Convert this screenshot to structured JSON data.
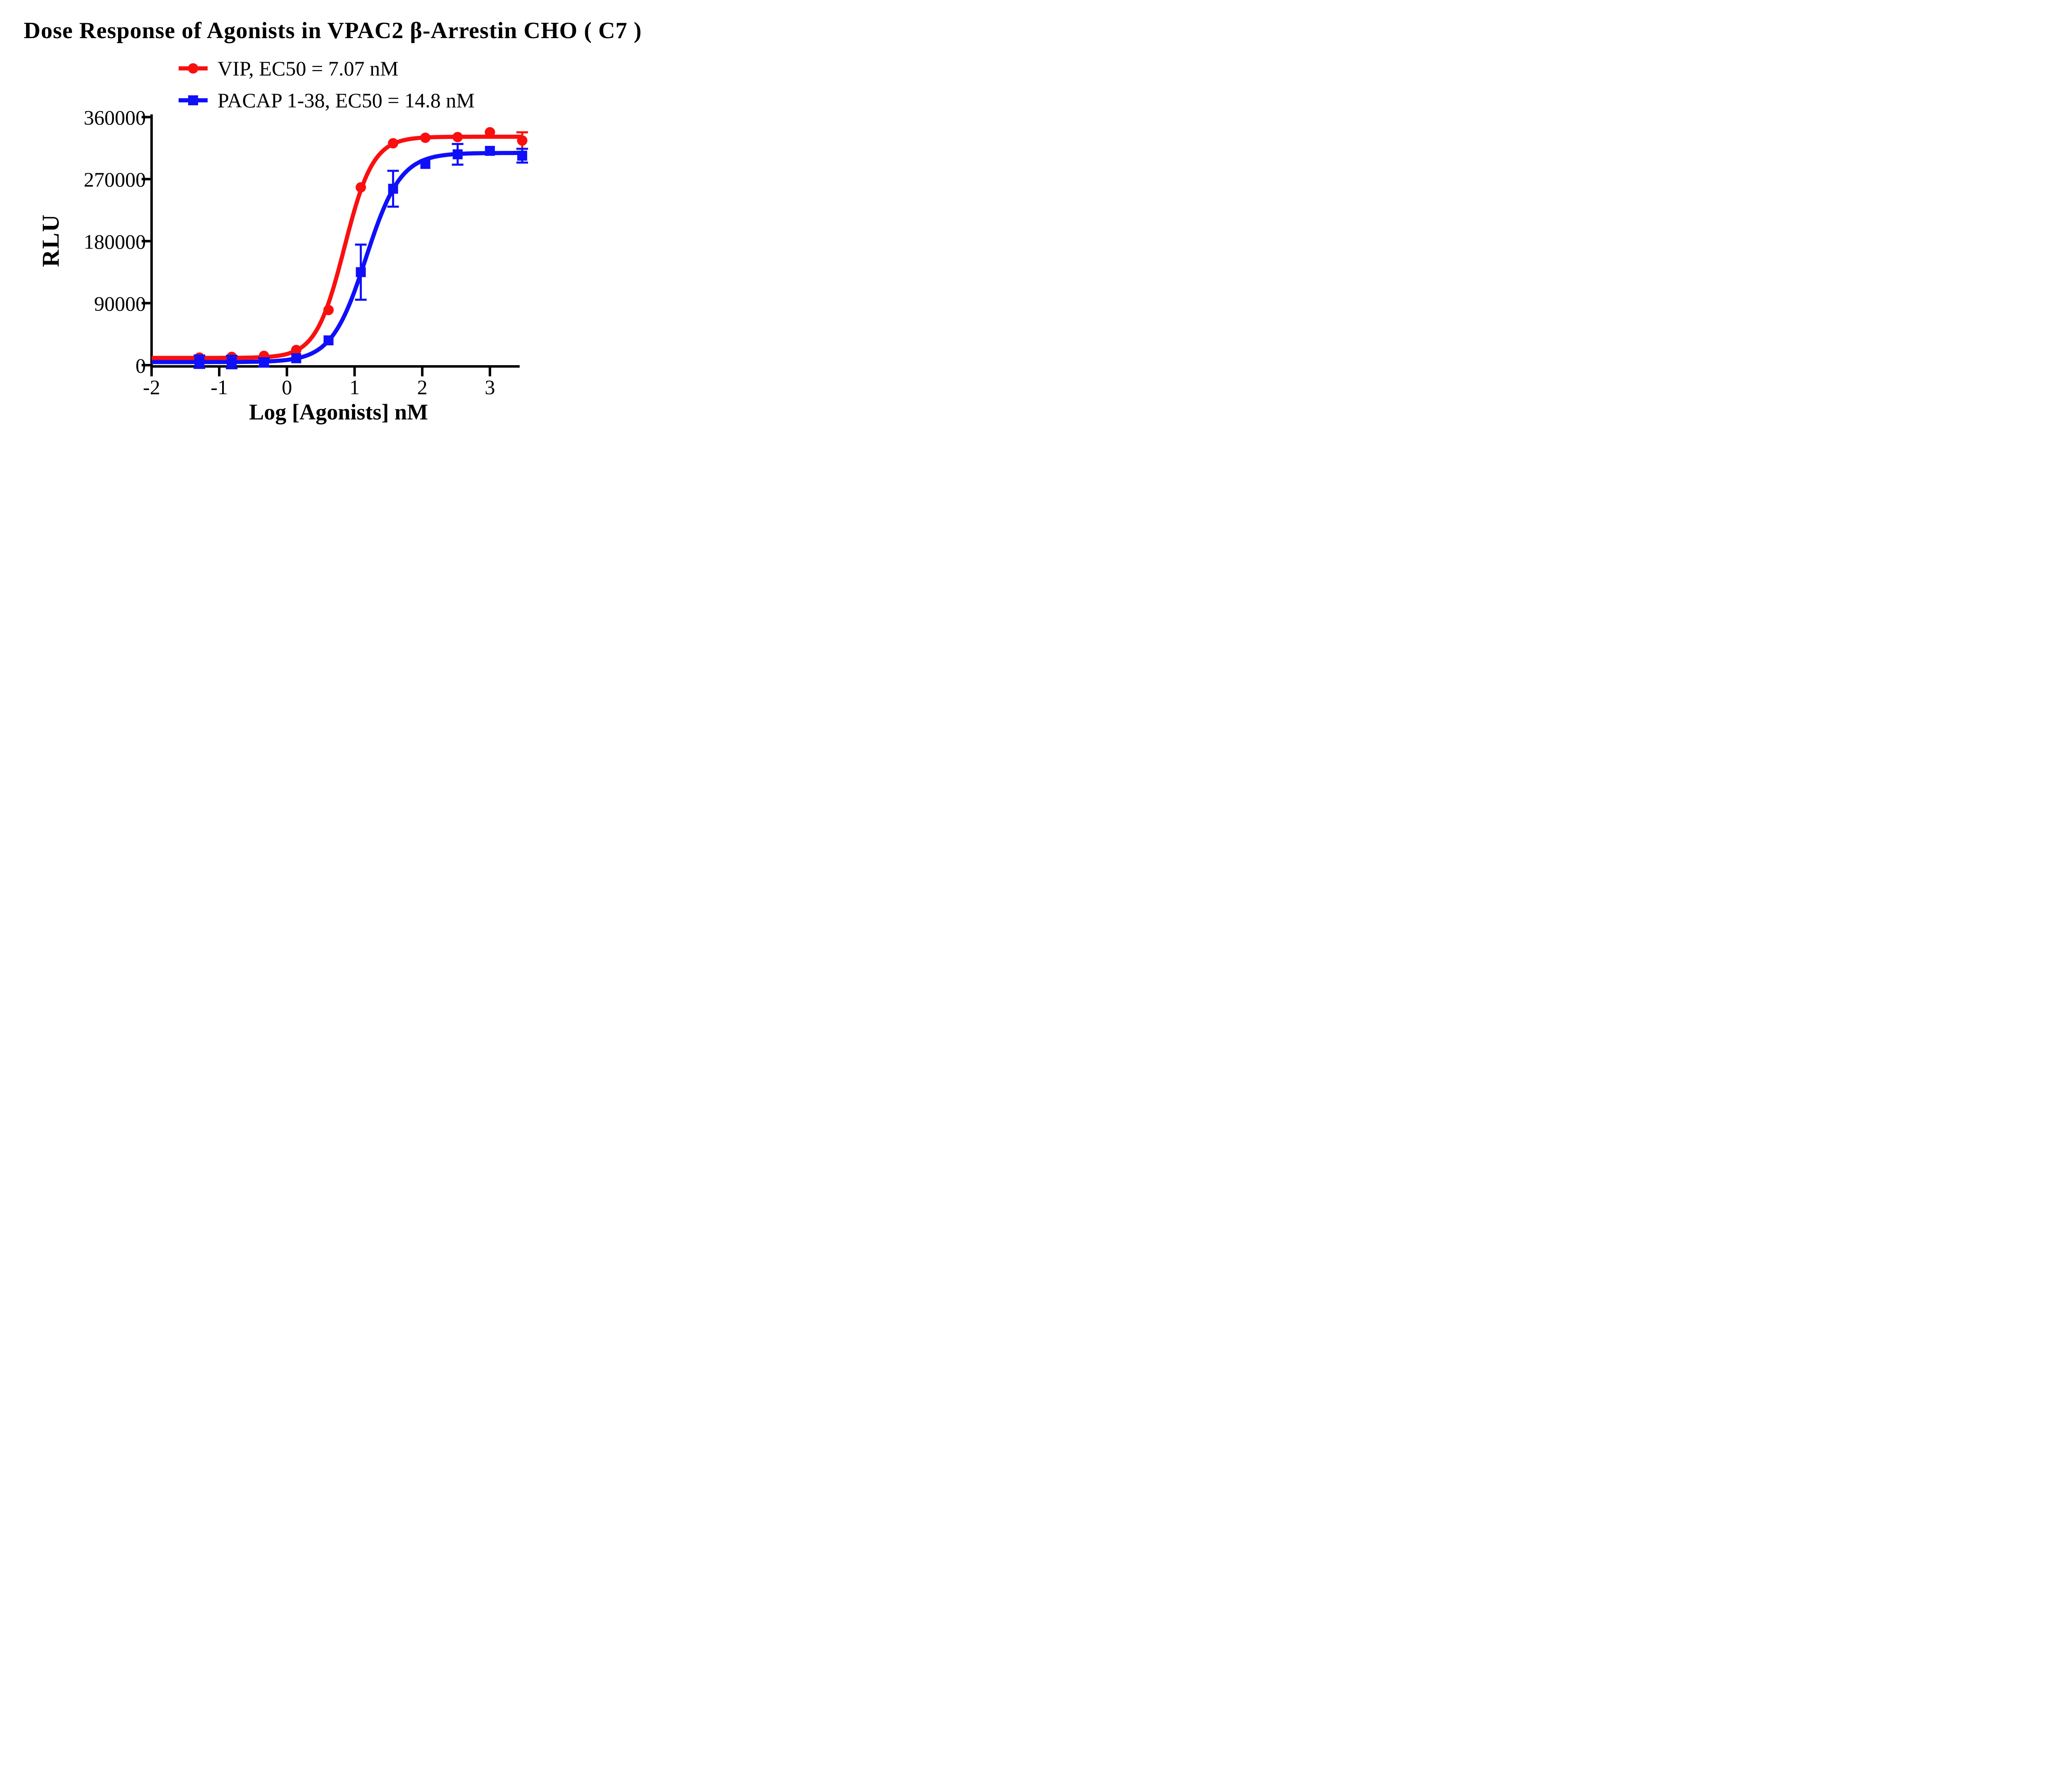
{
  "title": "Dose Response of Agonists in VPAC2 β-Arrestin CHO ( C7 )",
  "legend": {
    "items": [
      {
        "label": "VIP, EC50 = 7.07 nM",
        "marker": "circle",
        "color": "#FA0F0F"
      },
      {
        "label": "PACAP 1-38, EC50 = 14.8 nM",
        "marker": "square",
        "color": "#0F0FFA"
      }
    ]
  },
  "x_axis": {
    "label": "Log [Agonists] nM",
    "tick_labels": [
      "-2",
      "-1",
      "0",
      "1",
      "2",
      "3"
    ],
    "tick_values": [
      -2,
      -1,
      0,
      1,
      2,
      3
    ],
    "range": [
      -2,
      3.45
    ]
  },
  "y_axis": {
    "label": "RLU",
    "tick_labels": [
      "0",
      "90000",
      "180000",
      "270000",
      "360000"
    ],
    "tick_values": [
      0,
      90000,
      180000,
      270000,
      360000
    ],
    "range": [
      0,
      360000
    ]
  },
  "style": {
    "background": "#FFFFFF",
    "axis_color": "#000000",
    "red": "#FA0F0F",
    "blue": "#0F0FFA"
  },
  "chart_data": {
    "type": "line",
    "title": "Dose Response of Agonists in VPAC2 β-Arrestin CHO ( C7 )",
    "xlabel": "Log [Agonists] nM",
    "ylabel": "RLU",
    "xlim": [
      -2,
      3.45
    ],
    "ylim": [
      0,
      360000
    ],
    "grid": false,
    "legend_position": "top-center",
    "x": [
      -1.293,
      -0.816,
      -0.339,
      0.138,
      0.615,
      1.092,
      1.569,
      2.046,
      2.523,
      3.0,
      3.477
    ],
    "series": [
      {
        "name": "VIP",
        "ec50_nM": 7.07,
        "color": "#FA0F0F",
        "marker": "circle",
        "values": [
          11000,
          12000,
          13500,
          22000,
          80000,
          258000,
          322000,
          330000,
          331000,
          338000,
          326000
        ],
        "sem": [
          0,
          0,
          0,
          0,
          0,
          0,
          0,
          0,
          0,
          0,
          12000
        ],
        "fit": {
          "bottom": 10500,
          "top": 331500,
          "logEC50": 0.85,
          "hill": 2.05
        }
      },
      {
        "name": "PACAP 1-38",
        "ec50_nM": 14.8,
        "color": "#0F0FFA",
        "marker": "square",
        "values": [
          5000,
          4500,
          4000,
          10000,
          36000,
          135000,
          256000,
          292000,
          306000,
          311000,
          304000
        ],
        "sem": [
          9000,
          9000,
          6000,
          0,
          0,
          40000,
          26000,
          0,
          15000,
          0,
          10000
        ],
        "fit": {
          "bottom": 4500,
          "top": 308000,
          "logEC50": 1.17,
          "hill": 1.7
        }
      }
    ]
  }
}
